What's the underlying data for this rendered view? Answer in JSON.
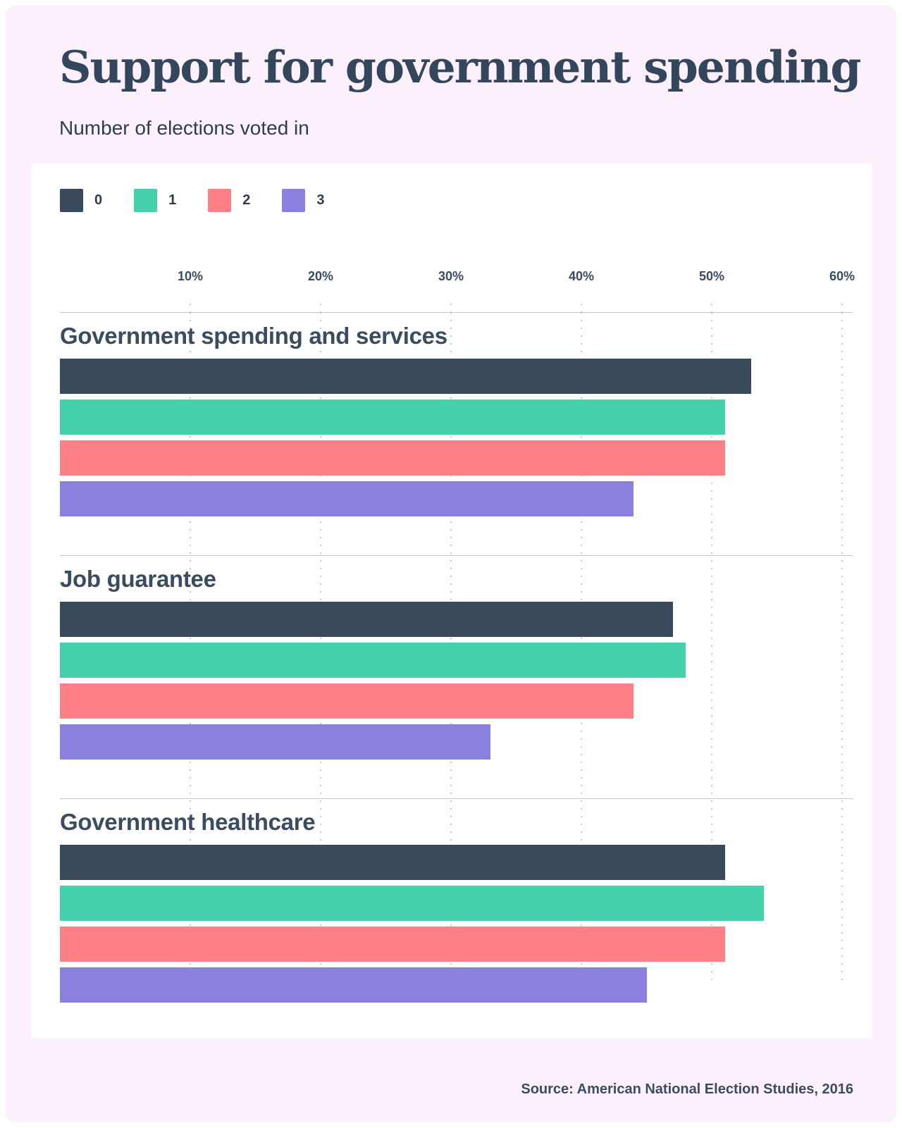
{
  "page": {
    "background": "#ffffff",
    "card_background": "#fdf0fd",
    "panel_background": "#ffffff"
  },
  "header": {
    "title": "Support for government spending",
    "subtitle": "Number of elections voted in"
  },
  "legend": [
    {
      "label": "0",
      "color": "#394a5c"
    },
    {
      "label": "1",
      "color": "#45d1ac"
    },
    {
      "label": "2",
      "color": "#fd8187"
    },
    {
      "label": "3",
      "color": "#8a80e0"
    }
  ],
  "source": "Source: American National Election Studies, 2016",
  "chart_data": {
    "type": "bar",
    "orientation": "horizontal",
    "title": "Support for government spending",
    "subtitle": "Number of elections voted in",
    "unit": "%",
    "xlim": [
      0,
      60
    ],
    "x_ticks": [
      "10%",
      "20%",
      "30%",
      "40%",
      "50%",
      "60%"
    ],
    "grid": "dotted-vertical",
    "legend_position": "top",
    "series_names": [
      "0",
      "1",
      "2",
      "3"
    ],
    "series_colors": [
      "#394a5c",
      "#45d1ac",
      "#fd8187",
      "#8a80e0"
    ],
    "groups": [
      {
        "label": "Government spending and services",
        "values": [
          53,
          51,
          51,
          44
        ]
      },
      {
        "label": "Job guarantee",
        "values": [
          47,
          48,
          44,
          33
        ]
      },
      {
        "label": "Government healthcare",
        "values": [
          51,
          54,
          51,
          45
        ]
      }
    ]
  }
}
